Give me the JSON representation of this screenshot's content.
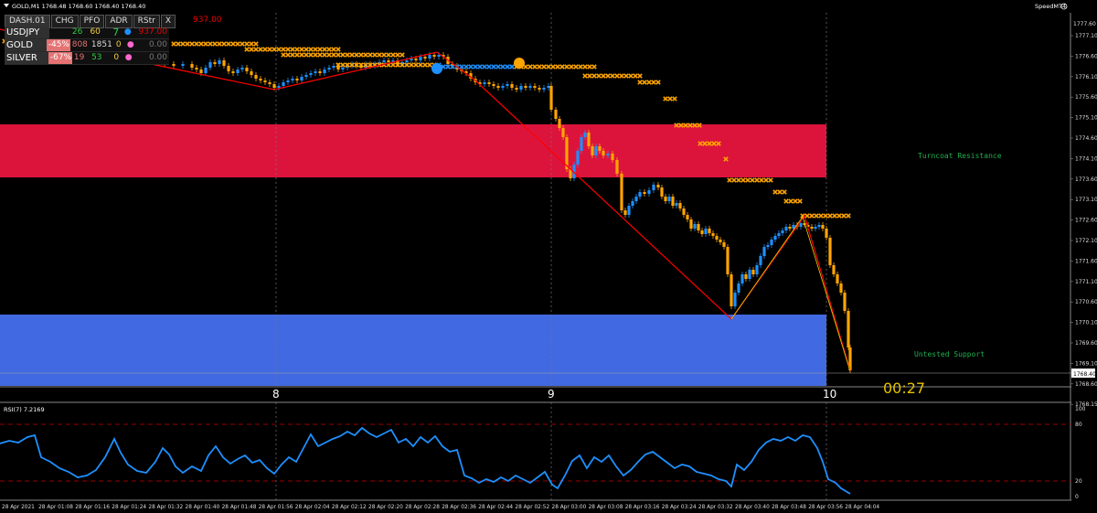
{
  "window": {
    "title": "GOLD,M1  1768.48 1768.60 1768.40 1768.40",
    "brand": "SpeedMT4"
  },
  "dashboard": {
    "title": "DASH.01",
    "columns": [
      "CHG",
      "PFO",
      "ADR",
      "RStr",
      "X"
    ],
    "header_value": "937.00",
    "rows": [
      {
        "symbol": "USDJPY",
        "chg": "",
        "pfo": "26",
        "adr": "60",
        "rstr": "7",
        "value": "937.00",
        "dot_color": "#1e90ff"
      },
      {
        "symbol": "GOLD",
        "chg": "-45%",
        "pfo": "808",
        "adr": "1851",
        "rstr": "0",
        "value": "0.00",
        "dot_color": "#ff66cc"
      },
      {
        "symbol": "SILVER",
        "chg": "-67%",
        "pfo": "19",
        "adr": "53",
        "rstr": "0",
        "value": "0.00",
        "dot_color": "#ff66cc"
      }
    ]
  },
  "zones": {
    "resistance_label": "Turncoat Resistance",
    "support_label": "Untested Support",
    "resistance_color": "#dc143c",
    "support_color": "#4169e1"
  },
  "timer": "00:27",
  "price_axis": {
    "labels": [
      "1777.10",
      "1776.60",
      "1776.10",
      "1775.60",
      "1775.10",
      "1774.60",
      "1774.10",
      "1773.60",
      "1773.10",
      "1772.60",
      "1772.10",
      "1771.60",
      "1771.10",
      "1770.60",
      "1770.10",
      "1769.60",
      "1769.10",
      "1768.60",
      "1768.15"
    ],
    "current_price": "1768.40",
    "top_label": "1777.60"
  },
  "session_labels": [
    "8",
    "9",
    "10"
  ],
  "rsi": {
    "title": "RSI(7) 7.2169",
    "axis_labels": [
      "100",
      "80",
      "20",
      "0"
    ]
  },
  "time_axis": [
    "28 Apr 2021",
    "28 Apr 01:08",
    "28 Apr 01:16",
    "28 Apr 01:24",
    "28 Apr 01:32",
    "28 Apr 01:40",
    "28 Apr 01:48",
    "28 Apr 01:56",
    "28 Apr 02:04",
    "28 Apr 02:12",
    "28 Apr 02:20",
    "28 Apr 02:28",
    "28 Apr 02:36",
    "28 Apr 02:44",
    "28 Apr 02:52",
    "28 Apr 03:00",
    "28 Apr 03:08",
    "28 Apr 03:16",
    "28 Apr 03:24",
    "28 Apr 03:32",
    "28 Apr 03:40",
    "28 Apr 03:48",
    "28 Apr 03:56",
    "28 Apr 04:04"
  ],
  "colors": {
    "bull": "#1e90ff",
    "bear": "#ffa500",
    "zigzag": "#ff0000",
    "cross": "#ffa500",
    "rsi_line": "#1e90ff",
    "yellow_line": "#e6d200"
  }
}
